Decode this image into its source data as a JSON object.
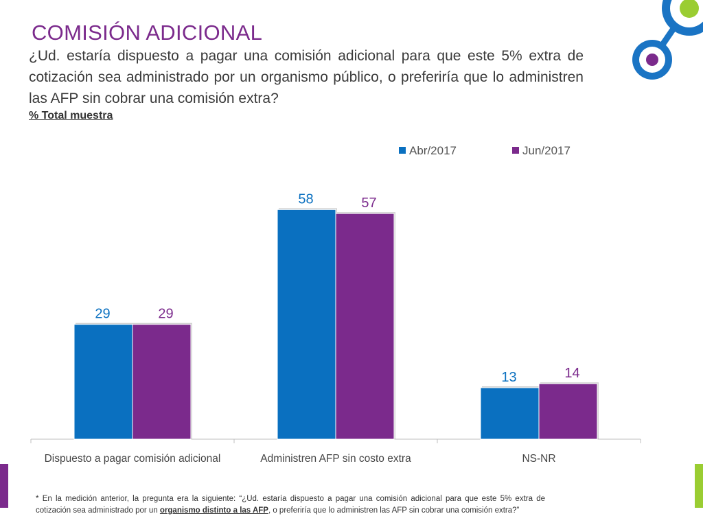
{
  "slide": {
    "title": "COMISIÓN ADICIONAL",
    "question": "¿Ud. estaría dispuesto a pagar una comisión adicional para que este 5% extra de cotización sea administrado por un organismo público, o preferiría que lo administren las AFP sin cobrar una comisión extra?",
    "subtitle": "% Total muestra",
    "footnote": {
      "before": "* En la medición anterior, la pregunta era la siguiente: “¿Ud. estaría dispuesto a pagar una comisión adicional para que este 5% extra de cotización sea administrado por un ",
      "emphasis": "organismo distinto a las AFP",
      "after": ", o preferiría que lo administren las AFP sin cobrar una comisión extra?”"
    }
  },
  "colors": {
    "title": "#7b2a8c",
    "abr": "#0a70c0",
    "jun": "#7b2a8c",
    "green_accent": "#9acd32",
    "blue_accent": "#1a74c4",
    "left_bar": "#7b2a8c",
    "right_bar": "#9acd32"
  },
  "icons": {
    "logo": "circles-logo"
  },
  "chart_data": {
    "type": "bar",
    "categories": [
      "Dispuesto a pagar comisión adicional",
      "Administren AFP sin costo extra",
      "NS-NR"
    ],
    "series": [
      {
        "name": "Abr/2017",
        "values": [
          29,
          58,
          13
        ],
        "color": "#0a70c0"
      },
      {
        "name": "Jun/2017",
        "values": [
          29,
          57,
          14
        ],
        "color": "#7b2a8c"
      }
    ],
    "ylim": [
      0,
      60
    ],
    "grid": false,
    "legend": "top-right",
    "data_labels": true
  }
}
